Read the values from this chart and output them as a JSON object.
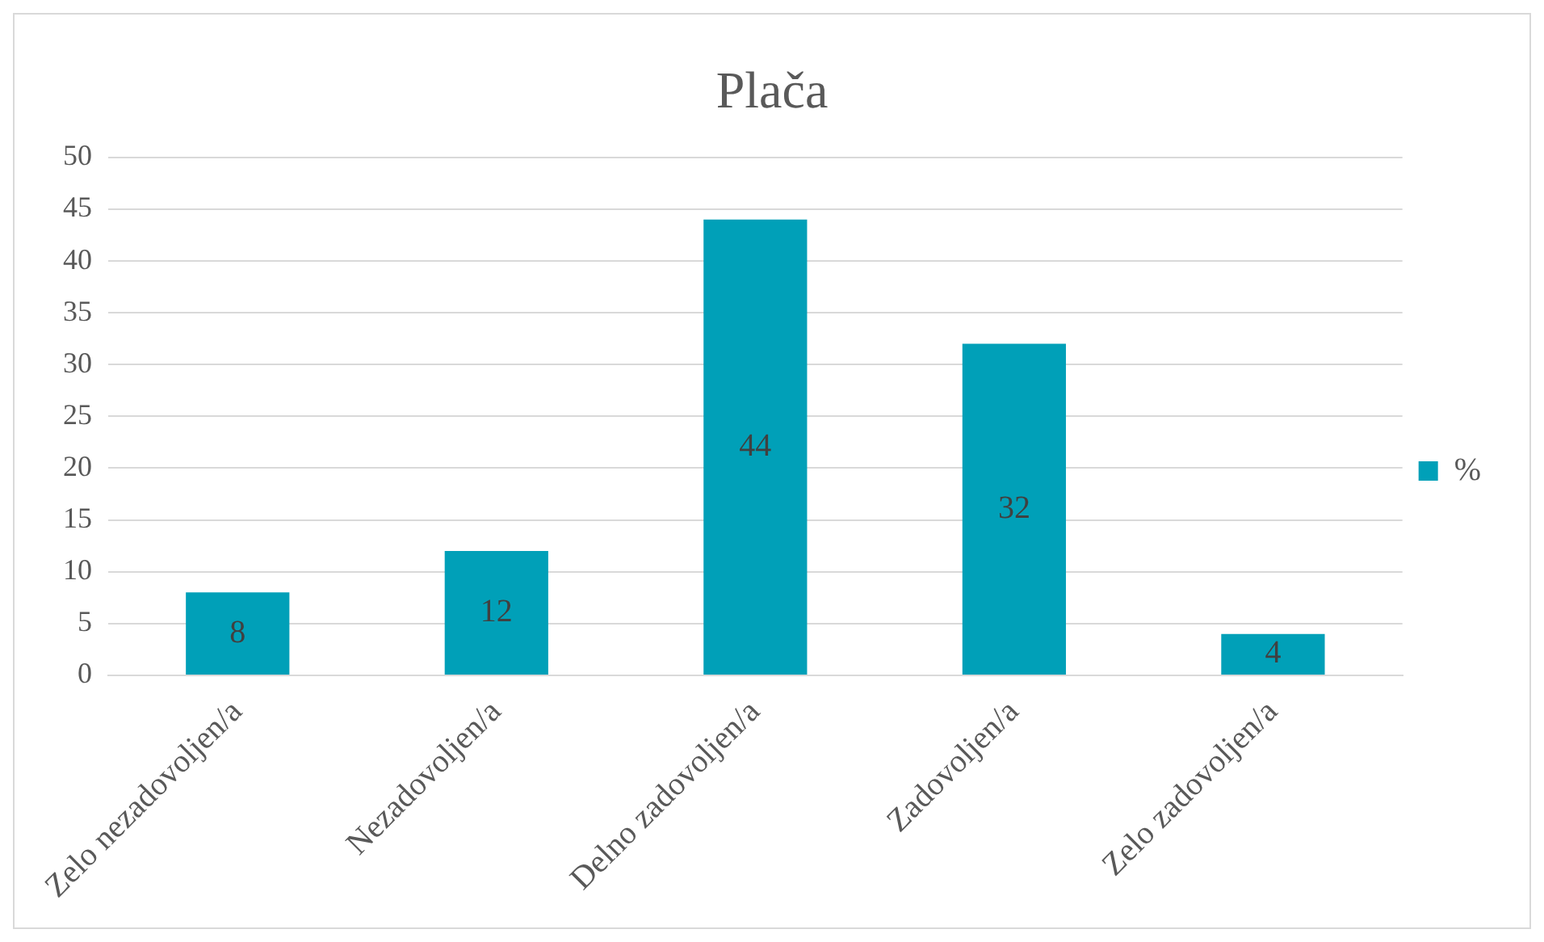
{
  "chart_data": {
    "type": "bar",
    "title": "Plača",
    "categories": [
      "Zelo nezadovoljen/a",
      "Nezadovoljen/a",
      "Delno zadovoljen/a",
      "Zadovoljen/a",
      "Zelo zadovoljen/a"
    ],
    "series": [
      {
        "name": "%",
        "color": "#00a0b8",
        "values": [
          8,
          12,
          44,
          32,
          4
        ]
      }
    ],
    "ylim": [
      0,
      50
    ],
    "yticks": [
      0,
      5,
      10,
      15,
      20,
      25,
      30,
      35,
      40,
      45,
      50
    ],
    "grid": "y",
    "legend": "right",
    "data_labels": true
  }
}
